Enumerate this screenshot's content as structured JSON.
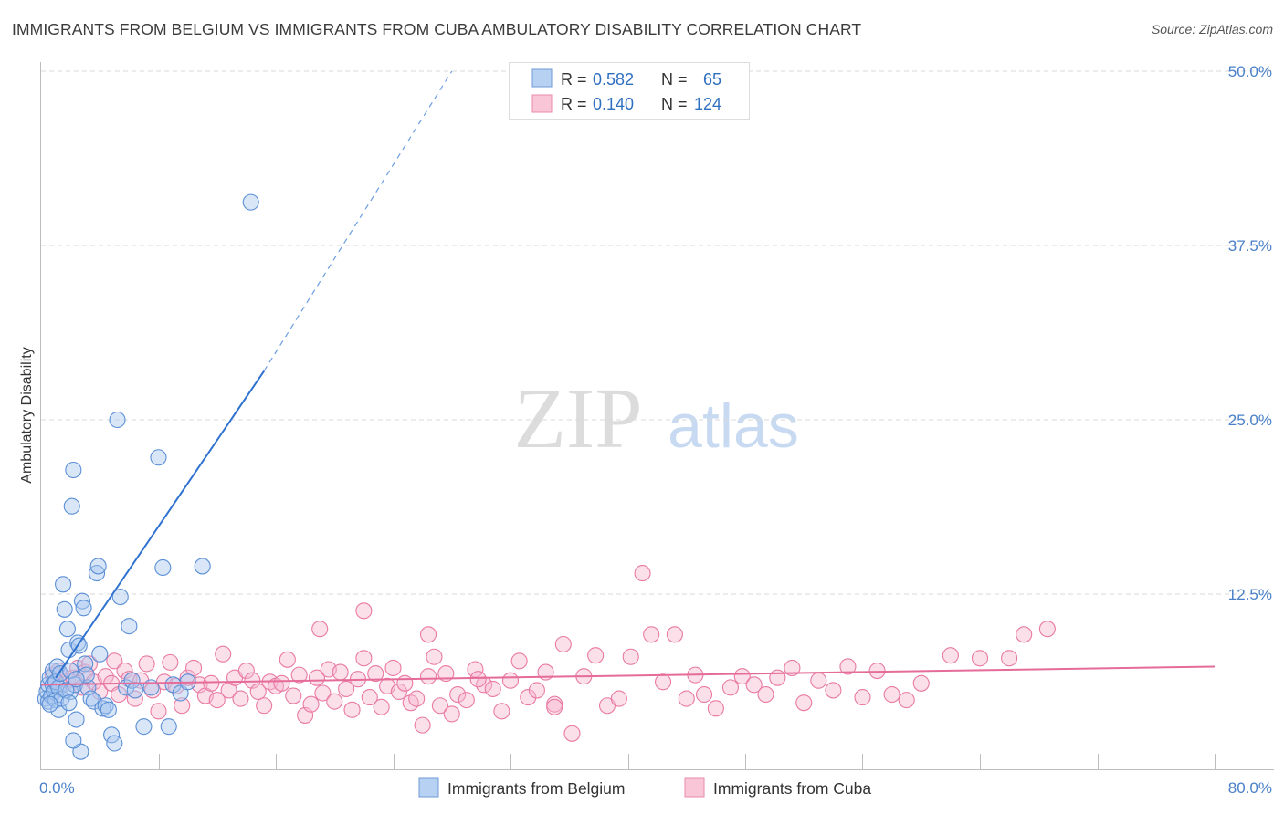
{
  "header": {
    "title": "IMMIGRANTS FROM BELGIUM VS IMMIGRANTS FROM CUBA AMBULATORY DISABILITY CORRELATION CHART",
    "source": "Source: ZipAtlas.com"
  },
  "watermark": {
    "zip": "ZIP",
    "atlas": "atlas"
  },
  "colors": {
    "belgium_fill": "#a9c8f0",
    "belgium_stroke": "#5b8fd6",
    "belgium_line": "#2f72d0",
    "cuba_fill": "#f7b9cf",
    "cuba_stroke": "#e97aa3",
    "cuba_line": "#e56b98",
    "tick_label": "#4a80c8",
    "grid": "#d9d9d9"
  },
  "legend": {
    "rows": [
      {
        "r_label": "R = ",
        "r_value": "0.582",
        "n_label": "N = ",
        "n_value": "65"
      },
      {
        "r_label": "R = ",
        "r_value": "0.140",
        "n_label": "N = ",
        "n_value": "124"
      }
    ]
  },
  "bottom_legend": {
    "belgium": "Immigrants from Belgium",
    "cuba": "Immigrants from Cuba"
  },
  "chart_data": {
    "type": "scatter",
    "ylabel": "Ambulatory Disability",
    "xlabel": "",
    "xlim": [
      0,
      80
    ],
    "ylim": [
      0,
      50
    ],
    "x_tick_labels": {
      "min": "0.0%",
      "max": "80.0%"
    },
    "x_minor_ticks": [
      8,
      16,
      24,
      32,
      40,
      48,
      56,
      64,
      72,
      80
    ],
    "y_ticks": [
      {
        "value": 12.5,
        "label": "12.5%"
      },
      {
        "value": 25,
        "label": "25.0%"
      },
      {
        "value": 37.5,
        "label": "37.5%"
      },
      {
        "value": 50,
        "label": "50.0%"
      }
    ],
    "grid": true,
    "series": [
      {
        "name": "Immigrants from Belgium",
        "R": 0.582,
        "N": 65,
        "trend": {
          "x0": 1.0,
          "y0": 6.5,
          "x1": 15.2,
          "y1": 28.5,
          "dash_x_end": 28.0,
          "dash_y_end": 50.0
        },
        "points": [
          [
            0.3,
            5.0
          ],
          [
            0.4,
            5.5
          ],
          [
            0.5,
            6.0
          ],
          [
            0.5,
            4.8
          ],
          [
            0.6,
            6.5
          ],
          [
            0.7,
            5.2
          ],
          [
            0.8,
            7.0
          ],
          [
            0.8,
            6.0
          ],
          [
            0.9,
            5.5
          ],
          [
            1.0,
            6.2
          ],
          [
            1.0,
            4.9
          ],
          [
            1.1,
            7.3
          ],
          [
            1.2,
            5.8
          ],
          [
            1.2,
            4.2
          ],
          [
            1.3,
            6.8
          ],
          [
            1.4,
            5.0
          ],
          [
            1.5,
            13.2
          ],
          [
            1.6,
            11.4
          ],
          [
            1.8,
            10.0
          ],
          [
            1.9,
            8.5
          ],
          [
            2.0,
            7.0
          ],
          [
            2.0,
            5.5
          ],
          [
            2.1,
            18.8
          ],
          [
            2.2,
            21.4
          ],
          [
            2.3,
            6.0
          ],
          [
            2.4,
            3.5
          ],
          [
            2.5,
            9.0
          ],
          [
            2.6,
            8.8
          ],
          [
            2.7,
            1.2
          ],
          [
            2.8,
            12.0
          ],
          [
            2.9,
            11.5
          ],
          [
            3.0,
            7.5
          ],
          [
            3.2,
            5.8
          ],
          [
            3.4,
            5.0
          ],
          [
            3.6,
            4.8
          ],
          [
            3.8,
            14.0
          ],
          [
            3.9,
            14.5
          ],
          [
            4.0,
            8.2
          ],
          [
            4.2,
            4.3
          ],
          [
            4.4,
            4.5
          ],
          [
            4.6,
            4.2
          ],
          [
            4.8,
            2.4
          ],
          [
            5.0,
            1.8
          ],
          [
            5.2,
            25.0
          ],
          [
            5.4,
            12.3
          ],
          [
            5.8,
            5.8
          ],
          [
            6.0,
            10.2
          ],
          [
            6.2,
            6.3
          ],
          [
            6.4,
            5.6
          ],
          [
            7.0,
            3.0
          ],
          [
            7.5,
            5.8
          ],
          [
            8.0,
            22.3
          ],
          [
            8.3,
            14.4
          ],
          [
            8.7,
            3.0
          ],
          [
            9.0,
            6.0
          ],
          [
            9.5,
            5.4
          ],
          [
            10.0,
            6.2
          ],
          [
            11.0,
            14.5
          ],
          [
            2.2,
            2.0
          ],
          [
            1.7,
            5.6
          ],
          [
            3.1,
            6.7
          ],
          [
            0.6,
            4.6
          ],
          [
            1.9,
            4.7
          ],
          [
            2.4,
            6.4
          ],
          [
            14.3,
            40.6
          ]
        ]
      },
      {
        "name": "Immigrants from Cuba",
        "R": 0.14,
        "N": 124,
        "trend": {
          "x0": 0.0,
          "y0": 6.0,
          "x1": 80.0,
          "y1": 7.3
        },
        "points": [
          [
            0.8,
            6.7
          ],
          [
            1.2,
            7.0
          ],
          [
            1.5,
            6.0
          ],
          [
            1.8,
            6.3
          ],
          [
            2.2,
            6.5
          ],
          [
            2.5,
            7.2
          ],
          [
            2.8,
            5.8
          ],
          [
            3.0,
            6.9
          ],
          [
            3.3,
            7.5
          ],
          [
            3.6,
            6.2
          ],
          [
            4.0,
            5.5
          ],
          [
            4.4,
            6.6
          ],
          [
            4.8,
            6.1
          ],
          [
            5.0,
            7.7
          ],
          [
            5.3,
            5.3
          ],
          [
            5.7,
            7.0
          ],
          [
            6.0,
            6.4
          ],
          [
            6.4,
            5.0
          ],
          [
            6.8,
            6.3
          ],
          [
            7.2,
            7.5
          ],
          [
            7.6,
            5.6
          ],
          [
            8.0,
            4.1
          ],
          [
            8.4,
            6.2
          ],
          [
            8.8,
            7.6
          ],
          [
            9.2,
            5.9
          ],
          [
            9.6,
            4.5
          ],
          [
            10.0,
            6.5
          ],
          [
            10.4,
            7.2
          ],
          [
            10.8,
            6.0
          ],
          [
            11.2,
            5.2
          ],
          [
            11.6,
            6.1
          ],
          [
            12.0,
            4.9
          ],
          [
            12.4,
            8.2
          ],
          [
            12.8,
            5.6
          ],
          [
            13.2,
            6.5
          ],
          [
            13.6,
            5.0
          ],
          [
            14.0,
            7.0
          ],
          [
            14.4,
            6.3
          ],
          [
            14.8,
            5.5
          ],
          [
            15.2,
            4.5
          ],
          [
            15.6,
            6.2
          ],
          [
            16.0,
            5.9
          ],
          [
            16.4,
            6.1
          ],
          [
            16.8,
            7.8
          ],
          [
            17.2,
            5.2
          ],
          [
            17.6,
            6.7
          ],
          [
            18.0,
            3.8
          ],
          [
            18.4,
            4.6
          ],
          [
            18.8,
            6.5
          ],
          [
            19.2,
            5.4
          ],
          [
            19.6,
            7.1
          ],
          [
            20.0,
            4.8
          ],
          [
            20.4,
            6.9
          ],
          [
            20.8,
            5.7
          ],
          [
            21.2,
            4.2
          ],
          [
            21.6,
            6.4
          ],
          [
            22.0,
            7.9
          ],
          [
            22.4,
            5.1
          ],
          [
            22.8,
            6.8
          ],
          [
            23.2,
            4.4
          ],
          [
            23.6,
            5.9
          ],
          [
            24.0,
            7.2
          ],
          [
            24.4,
            5.5
          ],
          [
            24.8,
            6.1
          ],
          [
            25.2,
            4.7
          ],
          [
            25.6,
            5.0
          ],
          [
            26.0,
            3.1
          ],
          [
            26.4,
            6.6
          ],
          [
            26.8,
            8.0
          ],
          [
            27.2,
            4.5
          ],
          [
            27.6,
            6.8
          ],
          [
            28.0,
            3.9
          ],
          [
            28.4,
            5.3
          ],
          [
            29.0,
            4.9
          ],
          [
            29.6,
            7.1
          ],
          [
            30.2,
            6.0
          ],
          [
            30.8,
            5.7
          ],
          [
            31.4,
            4.1
          ],
          [
            32.0,
            6.3
          ],
          [
            32.6,
            7.7
          ],
          [
            33.2,
            5.1
          ],
          [
            33.8,
            5.6
          ],
          [
            34.4,
            6.9
          ],
          [
            35.0,
            4.6
          ],
          [
            35.6,
            8.9
          ],
          [
            36.2,
            2.5
          ],
          [
            37.0,
            6.6
          ],
          [
            37.8,
            8.1
          ],
          [
            38.6,
            4.5
          ],
          [
            39.4,
            5.0
          ],
          [
            40.2,
            8.0
          ],
          [
            41.0,
            14.0
          ],
          [
            41.6,
            9.6
          ],
          [
            42.4,
            6.2
          ],
          [
            43.2,
            9.6
          ],
          [
            44.0,
            5.0
          ],
          [
            44.6,
            6.7
          ],
          [
            45.2,
            5.3
          ],
          [
            46.0,
            4.3
          ],
          [
            47.0,
            5.8
          ],
          [
            47.8,
            6.6
          ],
          [
            48.6,
            6.0
          ],
          [
            49.4,
            5.3
          ],
          [
            50.2,
            6.5
          ],
          [
            51.2,
            7.2
          ],
          [
            52.0,
            4.7
          ],
          [
            53.0,
            6.3
          ],
          [
            54.0,
            5.6
          ],
          [
            55.0,
            7.3
          ],
          [
            56.0,
            5.1
          ],
          [
            57.0,
            7.0
          ],
          [
            58.0,
            5.3
          ],
          [
            59.0,
            4.9
          ],
          [
            60.0,
            6.1
          ],
          [
            62.0,
            8.1
          ],
          [
            64.0,
            7.9
          ],
          [
            66.0,
            7.9
          ],
          [
            67.0,
            9.6
          ],
          [
            68.6,
            10.0
          ],
          [
            22.0,
            11.3
          ],
          [
            26.4,
            9.6
          ],
          [
            19.0,
            10.0
          ],
          [
            35.0,
            4.4
          ],
          [
            29.8,
            6.4
          ]
        ]
      }
    ]
  }
}
